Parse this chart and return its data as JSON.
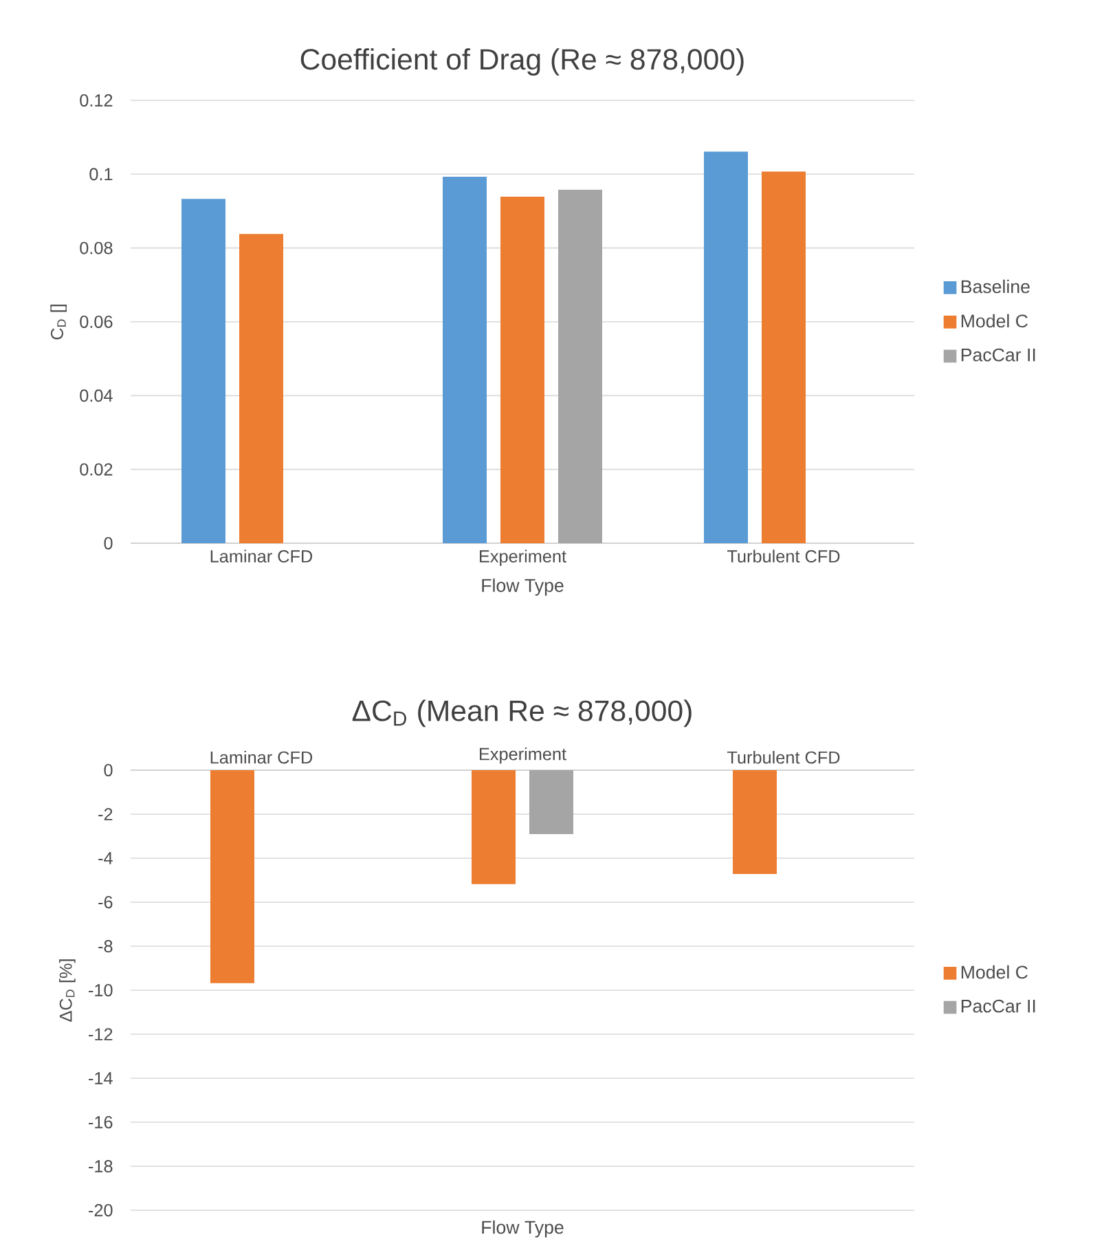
{
  "chart_data": [
    {
      "type": "bar",
      "title": "Coefficient of Drag (Re ≈ 878,000)",
      "xlabel": "Flow Type",
      "ylabel": "C$_{D}$ []",
      "categories": [
        "Laminar CFD",
        "Experiment",
        "Turbulent CFD"
      ],
      "series": [
        {
          "name": "Baseline",
          "color": "#5b9bd5",
          "values": [
            0.0933,
            0.0993,
            0.1061
          ]
        },
        {
          "name": "Model C",
          "color": "#ed7d31",
          "values": [
            0.0838,
            0.0939,
            0.1007
          ]
        },
        {
          "name": "PacCar II",
          "color": "#a5a5a5",
          "values": [
            null,
            0.0958,
            null
          ]
        }
      ],
      "ylim": [
        0,
        0.12
      ],
      "yticks": [
        0,
        0.02,
        0.04,
        0.06,
        0.08,
        0.1,
        0.12
      ],
      "grid": "y",
      "legend": "right"
    },
    {
      "type": "bar",
      "title": "ΔC$_{D}$ (Mean Re ≈ 878,000)",
      "xlabel": "Flow Type",
      "ylabel": "ΔC$_{D}$  [%]",
      "categories": [
        "Laminar CFD",
        "Experiment",
        "Turbulent CFD"
      ],
      "series": [
        {
          "name": "Model C",
          "color": "#ed7d31",
          "values": [
            -9.68,
            -5.18,
            -4.72
          ]
        },
        {
          "name": "PacCar II",
          "color": "#a5a5a5",
          "values": [
            null,
            -2.91,
            null
          ]
        }
      ],
      "ylim": [
        -20,
        0
      ],
      "yticks": [
        -20,
        -18,
        -16,
        -14,
        -12,
        -10,
        -8,
        -6,
        -4,
        -2,
        0
      ],
      "grid": "y",
      "legend": "right"
    }
  ]
}
